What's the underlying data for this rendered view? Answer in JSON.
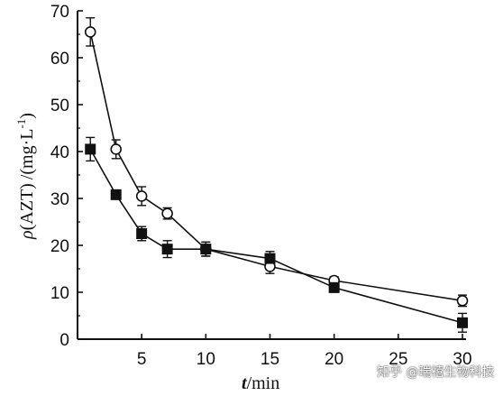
{
  "chart_data": {
    "type": "line",
    "xlabel_italic": "t",
    "xlabel_unit": "/min",
    "ylabel": "ρ(AZT) /(mg·L-1)",
    "ylabel_parts": {
      "symbol": "ρ",
      "var": "(AZT)",
      "unit_main": "/(mg·L",
      "unit_exp": "-1",
      "unit_close": ")"
    },
    "xlim": [
      0,
      30
    ],
    "ylim": [
      0,
      70
    ],
    "x_ticks": [
      5,
      10,
      15,
      20,
      25,
      30
    ],
    "y_ticks": [
      0,
      10,
      20,
      30,
      40,
      50,
      60,
      70
    ],
    "series": [
      {
        "marker": "open-circle",
        "points": [
          {
            "x": 1,
            "y": 65.5,
            "err": 3
          },
          {
            "x": 3,
            "y": 40.5,
            "err": 2
          },
          {
            "x": 5,
            "y": 30.5,
            "err": 2
          },
          {
            "x": 7,
            "y": 26.8,
            "err": 1.2
          },
          {
            "x": 10,
            "y": 19.2,
            "err": 1.5
          },
          {
            "x": 15,
            "y": 15.5,
            "err": 1.5
          },
          {
            "x": 20,
            "y": 12.5,
            "err": 0.8
          },
          {
            "x": 30,
            "y": 8.2,
            "err": 1.2
          }
        ]
      },
      {
        "marker": "filled-square",
        "points": [
          {
            "x": 1,
            "y": 40.5,
            "err": 2.5
          },
          {
            "x": 3,
            "y": 30.8,
            "err": 0.8
          },
          {
            "x": 5,
            "y": 22.5,
            "err": 1.5
          },
          {
            "x": 7,
            "y": 19.2,
            "err": 1.8
          },
          {
            "x": 10,
            "y": 19.2,
            "err": 1.5
          },
          {
            "x": 15,
            "y": 17.2,
            "err": 1.5
          },
          {
            "x": 20,
            "y": 11,
            "err": 1
          },
          {
            "x": 30,
            "y": 3.5,
            "err": 2
          }
        ]
      }
    ]
  },
  "watermark": "知乎 @瑞禧生物科技"
}
